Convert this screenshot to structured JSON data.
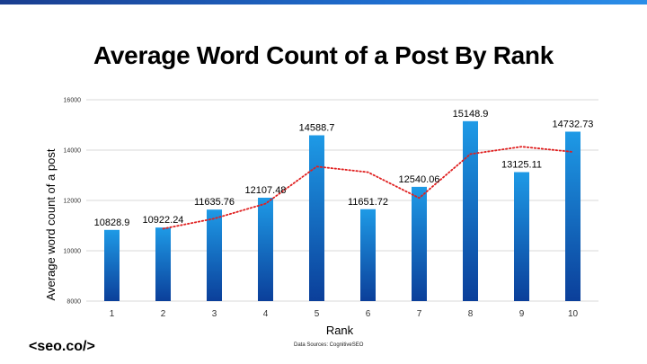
{
  "brand": "<seo.co/>",
  "source": "Data Sources: CognitiveSEO",
  "colors": {
    "top_bar": "#1f6fd0",
    "bar_top": "#1e9ae6",
    "bar_bottom": "#0b3f9a",
    "trendline": "#e02020",
    "grid": "#d9d9d9"
  },
  "chart_data": {
    "type": "bar",
    "title": "Average Word Count of a Post By Rank",
    "xlabel": "Rank",
    "ylabel": "Average word count of a post",
    "categories": [
      "1",
      "2",
      "3",
      "4",
      "5",
      "6",
      "7",
      "8",
      "9",
      "10"
    ],
    "values": [
      10828.9,
      10922.24,
      11635.76,
      12107.48,
      14588.7,
      11651.72,
      12540.06,
      15148.9,
      13125.11,
      14732.73
    ],
    "data_labels": [
      "10828.9",
      "10922.24",
      "11635.76",
      "12107.48",
      "14588.7",
      "11651.72",
      "12540.06",
      "15148.9",
      "13125.11",
      "14732.73"
    ],
    "ylim": [
      8000,
      16000
    ],
    "yticks": [
      8000,
      10000,
      12000,
      14000,
      16000
    ],
    "ytick_labels": [
      "8000",
      "10000",
      "12000",
      "14000",
      "16000"
    ],
    "grid": true,
    "trendline": {
      "type": "moving-average",
      "period": 2,
      "style": "dotted",
      "x": [
        "2",
        "3",
        "4",
        "5",
        "6",
        "7",
        "8",
        "9",
        "10"
      ],
      "values": [
        10875.57,
        11279.0,
        11871.62,
        13348.09,
        13120.21,
        12095.89,
        13844.48,
        14137.01,
        13928.92
      ]
    }
  }
}
